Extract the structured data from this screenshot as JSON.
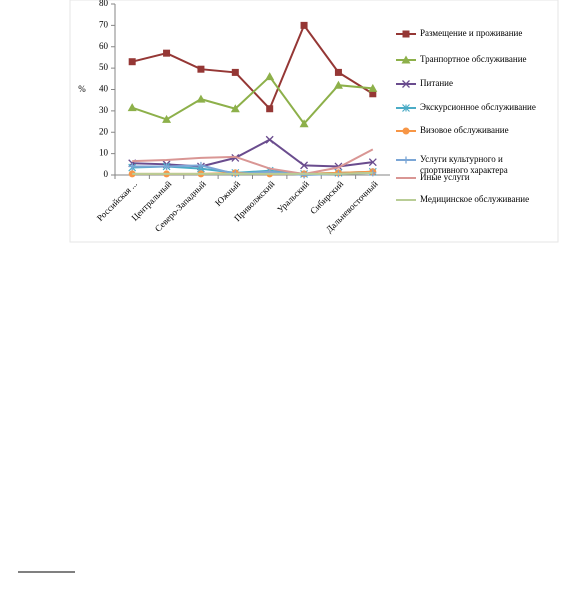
{
  "chart_data": {
    "type": "line",
    "ylabel": "%",
    "categories": [
      "Российская ...",
      "Центральный",
      "Северо-Западный",
      "Южный",
      "Приволжский",
      "Уральский",
      "Сибирский",
      "Дальневосточный"
    ],
    "ylim": [
      0,
      80
    ],
    "yticks": [
      0,
      10,
      20,
      30,
      40,
      50,
      60,
      70,
      80
    ],
    "grid": false,
    "legend": "right",
    "series": [
      {
        "name": "Размещение и проживание",
        "color": "#953735",
        "marker": "square",
        "values": [
          53,
          57,
          49.5,
          48,
          31,
          70,
          48,
          38
        ]
      },
      {
        "name": "Транпортное обслуживание",
        "color": "#8db04a",
        "marker": "triangle",
        "values": [
          31.5,
          26,
          35.5,
          31,
          46,
          24,
          42,
          40.5
        ]
      },
      {
        "name": "Питание",
        "color": "#6a4c8e",
        "marker": "x",
        "values": [
          5.5,
          5,
          4,
          8,
          16.5,
          4.5,
          4,
          6
        ]
      },
      {
        "name": "Экскурсионное обслуживание",
        "color": "#4bacc6",
        "marker": "star",
        "values": [
          3.5,
          4,
          3,
          1,
          2,
          0.5,
          1,
          1.5
        ]
      },
      {
        "name": "Визовое обслуживание",
        "color": "#f79646",
        "marker": "circle",
        "values": [
          0.5,
          0.5,
          0.5,
          1,
          0.5,
          0.5,
          1,
          1.5
        ]
      },
      {
        "name": "Услуги культурного и спортивного характера",
        "color": "#7ba6d6",
        "marker": "plus",
        "values": [
          4,
          4,
          4.5,
          0.5,
          1.5,
          0,
          0.5,
          1
        ]
      },
      {
        "name": "Иные услуги",
        "color": "#d99694",
        "marker": "none",
        "values": [
          6.5,
          7,
          8,
          8.5,
          3,
          0.5,
          3.5,
          12
        ]
      },
      {
        "name": "Медицинское обслуживание",
        "color": "#b9cd96",
        "marker": "none",
        "values": [
          0.5,
          0.5,
          0.5,
          0.5,
          0.5,
          0.5,
          0.5,
          1
        ]
      }
    ]
  }
}
